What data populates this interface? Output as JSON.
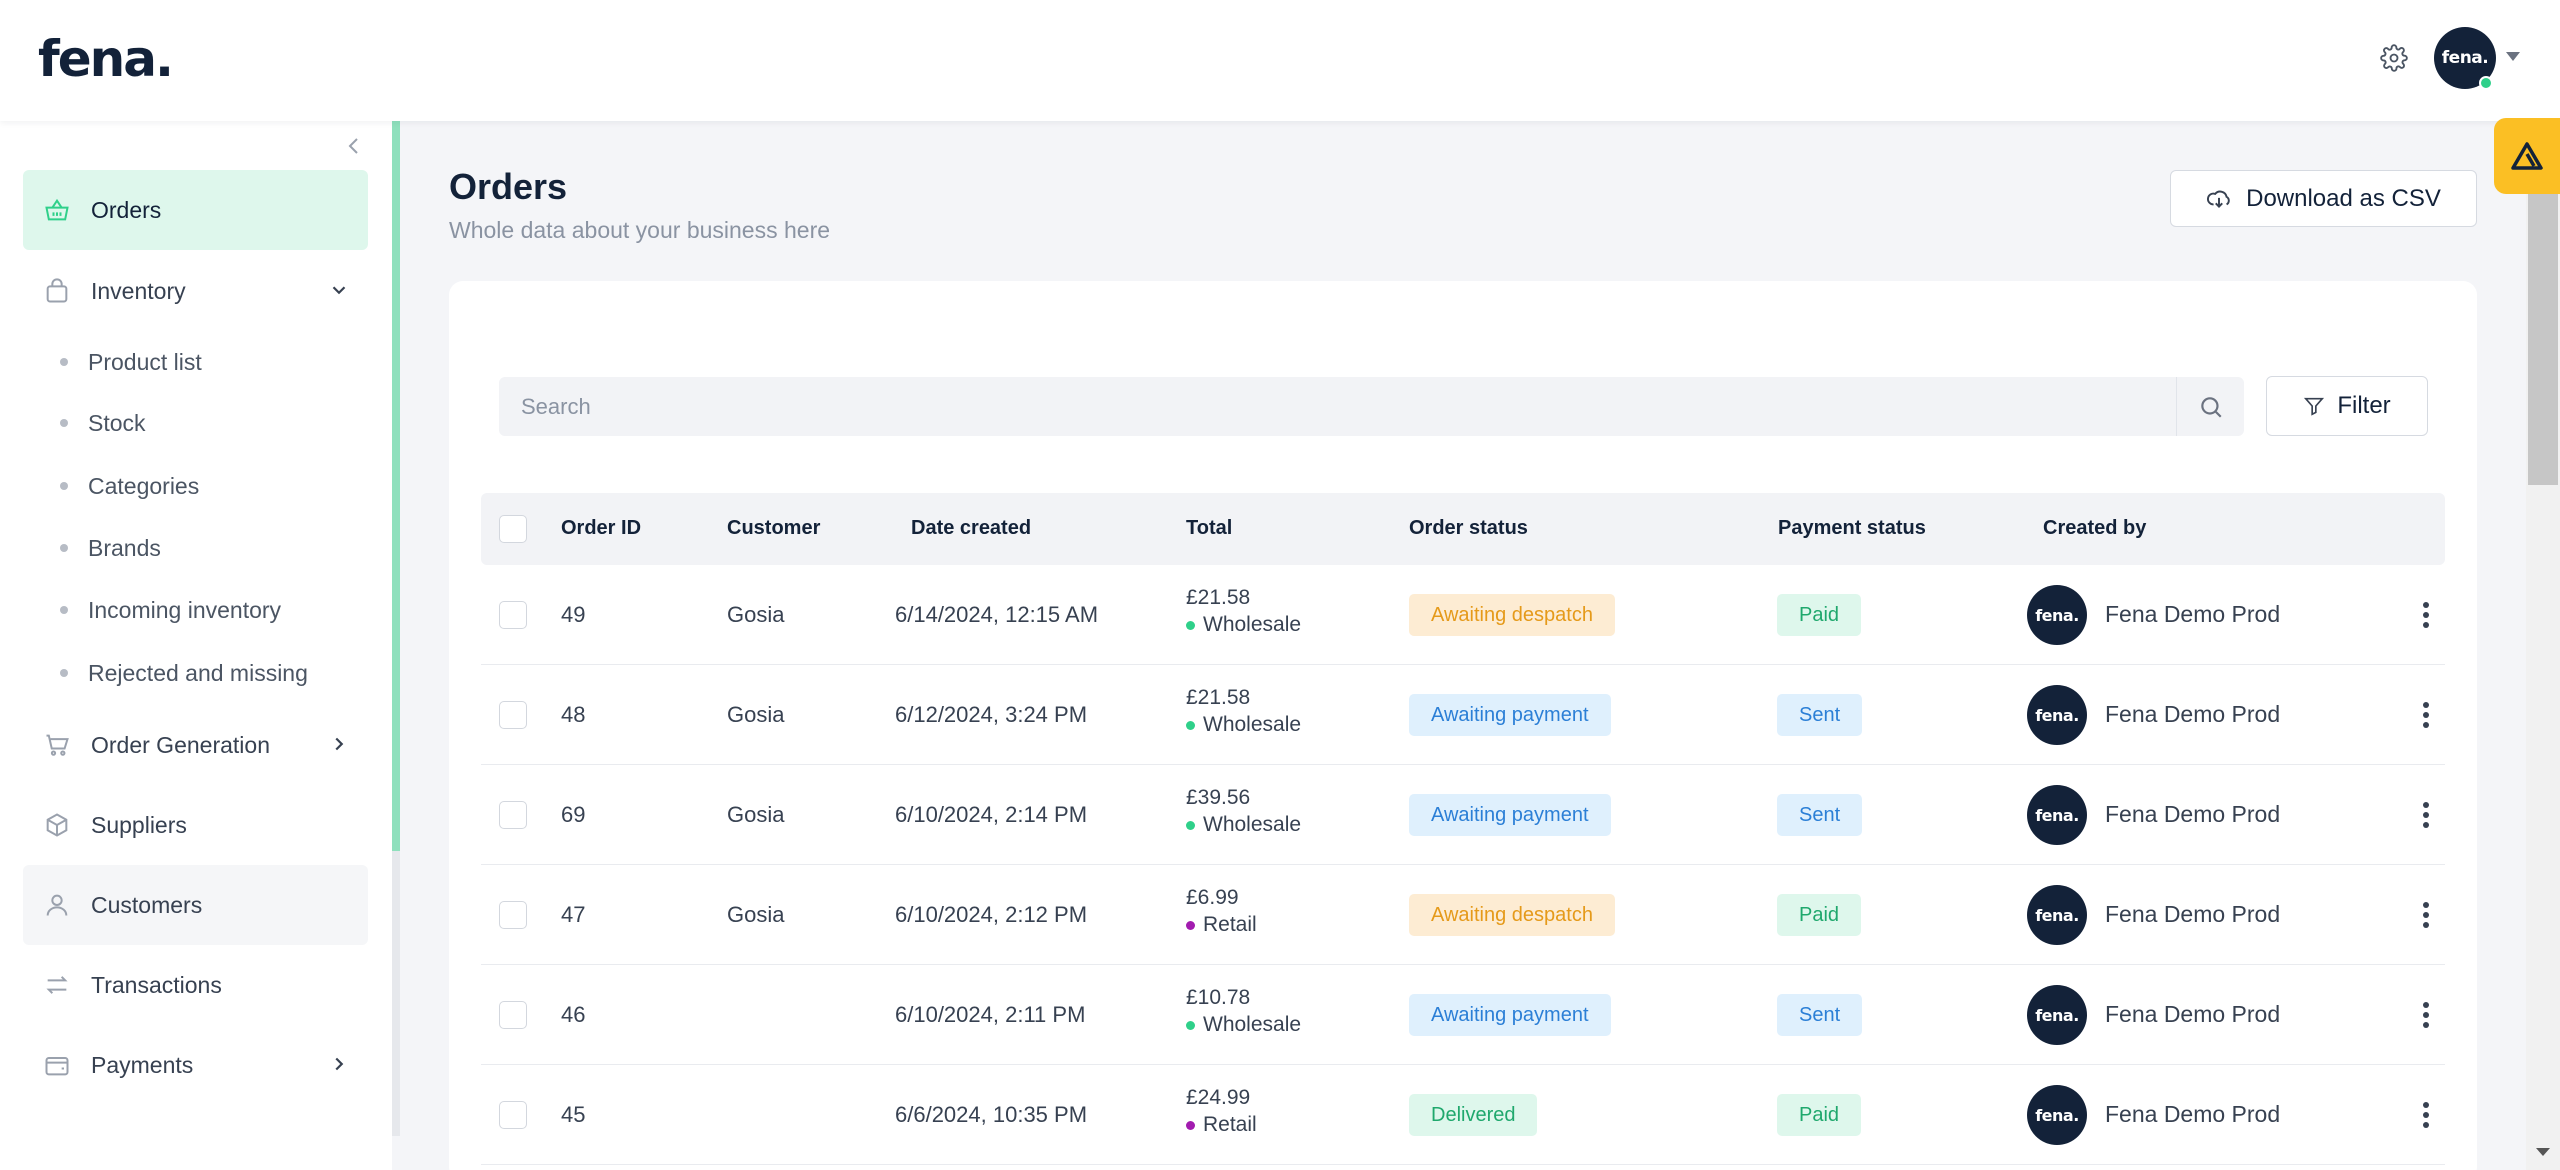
{
  "brand": {
    "logo_text": "fena.",
    "avatar_text": "fena."
  },
  "header": {
    "settings_icon": "gear-icon"
  },
  "sidebar": {
    "items": [
      {
        "label": "Orders",
        "icon": "basket-icon"
      },
      {
        "label": "Inventory",
        "icon": "bag-icon"
      },
      {
        "label": "Order Generation",
        "icon": "cart-icon"
      },
      {
        "label": "Suppliers",
        "icon": "box-icon"
      },
      {
        "label": "Customers",
        "icon": "user-icon"
      },
      {
        "label": "Transactions",
        "icon": "arrows-icon"
      },
      {
        "label": "Payments",
        "icon": "wallet-icon"
      }
    ],
    "inventory_sub": [
      {
        "label": "Product list"
      },
      {
        "label": "Stock"
      },
      {
        "label": "Categories"
      },
      {
        "label": "Brands"
      },
      {
        "label": "Incoming inventory"
      },
      {
        "label": "Rejected and missing"
      }
    ]
  },
  "page": {
    "title": "Orders",
    "subtitle": "Whole data about your business here",
    "download_label": "Download as CSV"
  },
  "search": {
    "placeholder": "Search"
  },
  "filter": {
    "label": "Filter"
  },
  "table": {
    "columns": [
      "Order ID",
      "Customer",
      "Date created",
      "Total",
      "Order status",
      "Payment status",
      "Created by"
    ],
    "rows": [
      {
        "order_id": "49",
        "customer": "Gosia",
        "date": "6/14/2024, 12:15 AM",
        "amount": "£21.58",
        "channel": "Wholesale",
        "order_status": "Awaiting despatch",
        "payment_status": "Paid",
        "created_by": "Fena Demo Prod"
      },
      {
        "order_id": "48",
        "customer": "Gosia",
        "date": "6/12/2024, 3:24 PM",
        "amount": "£21.58",
        "channel": "Wholesale",
        "order_status": "Awaiting payment",
        "payment_status": "Sent",
        "created_by": "Fena Demo Prod"
      },
      {
        "order_id": "69",
        "customer": "Gosia",
        "date": "6/10/2024, 2:14 PM",
        "amount": "£39.56",
        "channel": "Wholesale",
        "order_status": "Awaiting payment",
        "payment_status": "Sent",
        "created_by": "Fena Demo Prod"
      },
      {
        "order_id": "47",
        "customer": "Gosia",
        "date": "6/10/2024, 2:12 PM",
        "amount": "£6.99",
        "channel": "Retail",
        "order_status": "Awaiting despatch",
        "payment_status": "Paid",
        "created_by": "Fena Demo Prod"
      },
      {
        "order_id": "46",
        "customer": "",
        "date": "6/10/2024, 2:11 PM",
        "amount": "£10.78",
        "channel": "Wholesale",
        "order_status": "Awaiting payment",
        "payment_status": "Sent",
        "created_by": "Fena Demo Prod"
      },
      {
        "order_id": "45",
        "customer": "",
        "date": "6/6/2024, 10:35 PM",
        "amount": "£24.99",
        "channel": "Retail",
        "order_status": "Delivered",
        "payment_status": "Paid",
        "created_by": "Fena Demo Prod"
      }
    ]
  },
  "colors": {
    "accent": "#2fd08a",
    "wholesale_dot": "#2fd08a",
    "retail_dot": "#a21caf",
    "despatch_bg": "#fdecd3",
    "despatch_fg": "#e59a1a",
    "awaiting_bg": "#dff0fd",
    "awaiting_fg": "#2b7fd6",
    "delivered_bg": "#def7ec",
    "delivered_fg": "#1fa86d",
    "paid_bg": "#def7ec",
    "paid_fg": "#1fa86d",
    "sent_bg": "#dff0fd",
    "sent_fg": "#2b7fd6"
  }
}
